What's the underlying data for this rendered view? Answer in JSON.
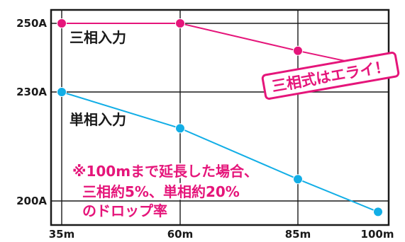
{
  "chart_data": {
    "type": "line",
    "categories": [
      "35m",
      "60m",
      "85m",
      "100m"
    ],
    "series": [
      {
        "name": "三相入力",
        "values": [
          250,
          250,
          242,
          237
        ],
        "color": "#e5157a"
      },
      {
        "name": "単相入力",
        "values": [
          230,
          220,
          206,
          197
        ],
        "color": "#12aee6"
      }
    ],
    "y_tick_labels": [
      "250A",
      "230A",
      "200A"
    ],
    "grid": true,
    "annotations": {
      "badge": "三相式はエライ！",
      "note_lines": [
        "※100mまで延長した場合、",
        "三相約5%、単相約20%",
        "のドロップ率"
      ]
    }
  }
}
